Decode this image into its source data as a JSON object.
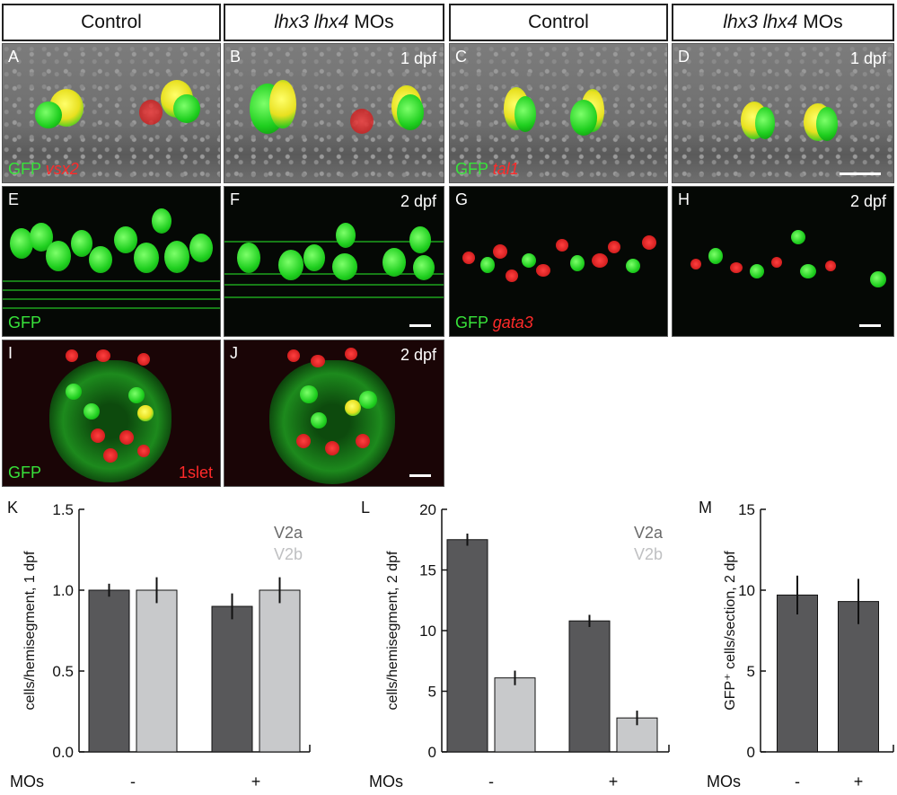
{
  "headers": [
    {
      "italic": "",
      "text": "Control"
    },
    {
      "italic": "lhx3 lhx4",
      "text": "MOs"
    },
    {
      "italic": "",
      "text": "Control"
    },
    {
      "italic": "lhx3 lhx4",
      "text": "MOs"
    }
  ],
  "panels": {
    "A": {
      "letter": "A",
      "time": "",
      "stain_green": "GFP",
      "stain_red": "vsx2"
    },
    "B": {
      "letter": "B",
      "time": "1 dpf"
    },
    "C": {
      "letter": "C",
      "time": "",
      "stain_green": "GFP",
      "stain_red": "tal1"
    },
    "D": {
      "letter": "D",
      "time": "1 dpf"
    },
    "E": {
      "letter": "E",
      "time": "",
      "stain_green": "GFP"
    },
    "F": {
      "letter": "F",
      "time": "2 dpf"
    },
    "G": {
      "letter": "G",
      "time": "",
      "stain_green": "GFP",
      "stain_red": "gata3"
    },
    "H": {
      "letter": "H",
      "time": "2 dpf"
    },
    "I": {
      "letter": "I",
      "time": "",
      "stain_green": "GFP",
      "stain_red": "1slet"
    },
    "J": {
      "letter": "J",
      "time": "2 dpf"
    }
  },
  "colors": {
    "v2a": "#58585a",
    "v2b": "#c8c9cb",
    "gfp": "#38e23a",
    "red": "#ff2a2a"
  },
  "chart_data": [
    {
      "panel": "K",
      "type": "bar",
      "ylabel": "cells/hemisegment, 1 dpf",
      "xlabel": "MOs",
      "categories": [
        "-",
        "+"
      ],
      "ylim": [
        0,
        1.5
      ],
      "yticks": [
        "0.0",
        "0.5",
        "1.0",
        "1.5"
      ],
      "series": [
        {
          "name": "V2a",
          "values": [
            1.0,
            0.9
          ],
          "errors": [
            0.04,
            0.08
          ]
        },
        {
          "name": "V2b",
          "values": [
            1.0,
            1.0
          ],
          "errors": [
            0.08,
            0.08
          ]
        }
      ]
    },
    {
      "panel": "L",
      "type": "bar",
      "ylabel": "cells/hemisegment, 2 dpf",
      "xlabel": "MOs",
      "categories": [
        "-",
        "+"
      ],
      "ylim": [
        0,
        20
      ],
      "yticks": [
        "0",
        "5",
        "10",
        "15",
        "20"
      ],
      "series": [
        {
          "name": "V2a",
          "values": [
            17.5,
            10.8
          ],
          "errors": [
            0.5,
            0.5
          ]
        },
        {
          "name": "V2b",
          "values": [
            6.1,
            2.8
          ],
          "errors": [
            0.6,
            0.6
          ]
        }
      ]
    },
    {
      "panel": "M",
      "type": "bar",
      "ylabel": "GFP⁺ cells/section, 2 dpf",
      "xlabel": "MOs",
      "categories": [
        "-",
        "+"
      ],
      "ylim": [
        0,
        15
      ],
      "yticks": [
        "0",
        "5",
        "10",
        "15"
      ],
      "series": [
        {
          "name": "",
          "values": [
            9.7,
            9.3
          ],
          "errors": [
            1.2,
            1.4
          ]
        }
      ]
    }
  ]
}
